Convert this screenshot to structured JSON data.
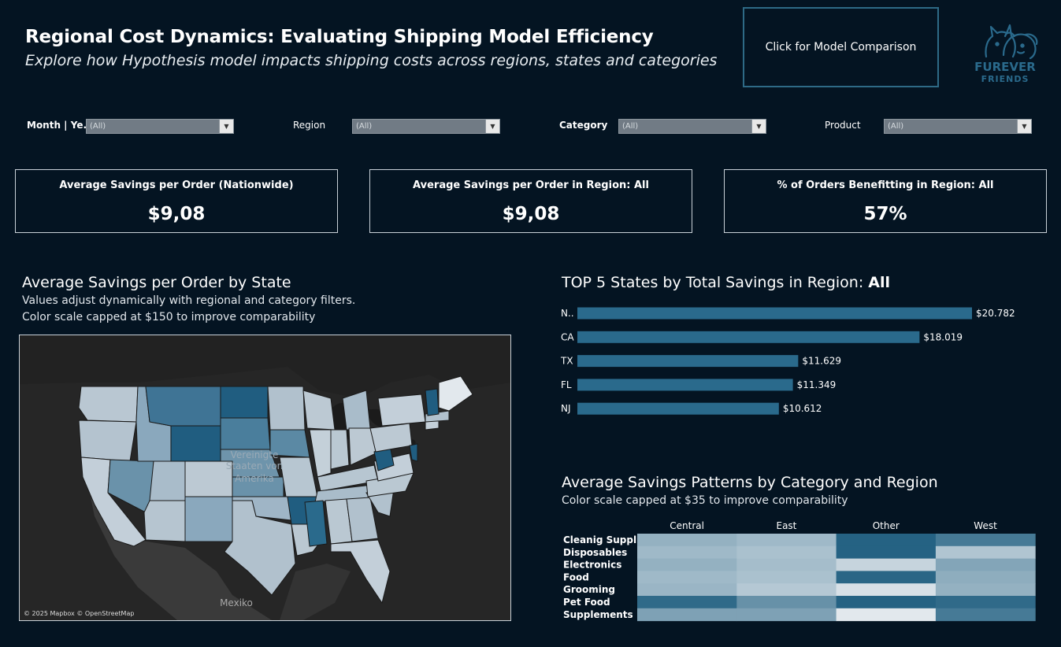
{
  "header": {
    "title": "Regional Cost Dynamics: Evaluating Shipping Model Efficiency",
    "subtitle": "Explore how Hypothesis model impacts shipping costs across regions, states and categories",
    "compare_button": "Click for Model Comparison",
    "logo": {
      "line1": "FUREVER",
      "line2": "FRIENDS",
      "icon": "cat-dog-icon"
    }
  },
  "filters": [
    {
      "label": "Month | Ye..",
      "value": "(All)"
    },
    {
      "label": "Region",
      "value": "(All)"
    },
    {
      "label": "Category",
      "value": "(All)"
    },
    {
      "label": "Product",
      "value": "(All)"
    }
  ],
  "kpis": [
    {
      "label": "Average Savings per Order (Nationwide)",
      "value": "$9,08"
    },
    {
      "label": "Average Savings per Order in Region:  All",
      "value": "$9,08"
    },
    {
      "label": "% of Orders Benefitting in Region: All",
      "value": "57%"
    }
  ],
  "map_section": {
    "title": "Average Savings per Order by State",
    "sub1": "Values adjust dynamically with regional and category filters.",
    "sub2": "Color scale capped at $150 to improve comparability",
    "label_country": [
      "Vereinigte",
      "Staaten von",
      "Amerika"
    ],
    "label_mexico": "Mexiko",
    "attribution": "© 2025 Mapbox © OpenStreetMap"
  },
  "bar_section": {
    "title_prefix": "TOP 5 States by Total Savings in Region: ",
    "title_region": "All"
  },
  "heat_section": {
    "title": "Average Savings Patterns by Category and Region",
    "sub": "Color scale capped at $35 to improve comparability"
  },
  "colors": {
    "accent": "#2a6a8c",
    "background": "#041422",
    "bar": "#2a6a8c"
  },
  "chart_data": [
    {
      "type": "bar",
      "orientation": "horizontal",
      "title": "TOP 5 States by Total Savings in Region: All",
      "categories": [
        "N..",
        "CA",
        "TX",
        "FL",
        "NJ"
      ],
      "values": [
        20782,
        18019,
        11629,
        11349,
        10612
      ],
      "labels": [
        "$20.782",
        "$18.019",
        "$11.629",
        "$11.349",
        "$10.612"
      ],
      "xlim": [
        0,
        21000
      ]
    },
    {
      "type": "heatmap",
      "title": "Average Savings Patterns by Category and Region",
      "columns": [
        "Central",
        "East",
        "Other",
        "West"
      ],
      "rows": [
        "Cleanig Supplies",
        "Disposables",
        "Electronics",
        "Food",
        "Grooming",
        "Pet Food",
        "Supplements"
      ],
      "values": [
        [
          14,
          12,
          34,
          28
        ],
        [
          12,
          10,
          34,
          9
        ],
        [
          14,
          11,
          5,
          17
        ],
        [
          12,
          10,
          33,
          15
        ],
        [
          13,
          8,
          2,
          14
        ],
        [
          32,
          22,
          34,
          32
        ],
        [
          18,
          18,
          0,
          28
        ]
      ],
      "scale_max": 35
    }
  ]
}
